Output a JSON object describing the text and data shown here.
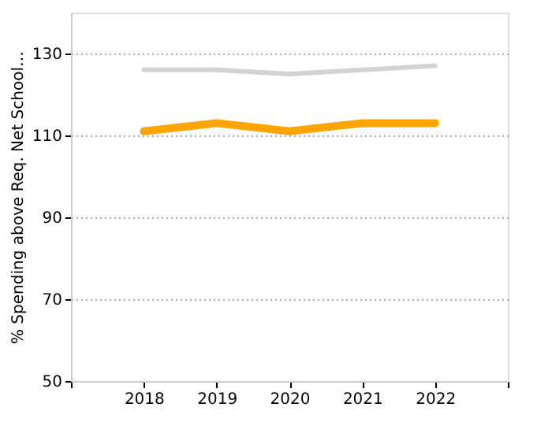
{
  "chart_data": {
    "type": "line",
    "ylabel": "% Spending above Req. Net School…",
    "x": [
      2018,
      2019,
      2020,
      2021,
      2022
    ],
    "series": [
      {
        "color": "#d3d3d3",
        "values": [
          126,
          126,
          125,
          126,
          127
        ]
      },
      {
        "color": "#ffa500",
        "values": [
          111,
          113,
          111,
          113,
          113
        ]
      }
    ],
    "xlim": [
      2017,
      2023
    ],
    "xticks": [
      {
        "value": 2017,
        "label": null
      },
      2018,
      2019,
      2020,
      2021,
      2022,
      {
        "value": 2023,
        "label": null
      }
    ],
    "ylim": [
      50,
      140
    ],
    "yticks": [
      50,
      70,
      90,
      110,
      130
    ],
    "grid": "y",
    "marker": "none",
    "line_style": "solid"
  }
}
